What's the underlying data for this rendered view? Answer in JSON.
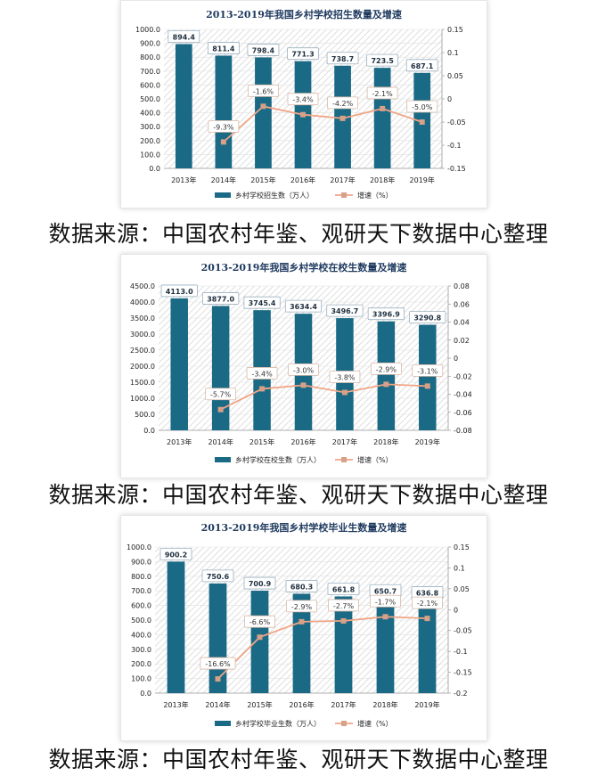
{
  "colors": {
    "bar": "#1a6985",
    "line": "#f0a585",
    "marker": "#d6a188",
    "grid": "#e2e2e2",
    "hatch": "#dfdfdf"
  },
  "chart_data": [
    {
      "type": "bar",
      "title": "2013-2019年我国乡村学校招生数量及增速",
      "categories": [
        "2013年",
        "2014年",
        "2015年",
        "2016年",
        "2017年",
        "2018年",
        "2019年"
      ],
      "bar_labels": [
        "894.4",
        "811.4",
        "798.4",
        "771.3",
        "738.7",
        "723.5",
        "687.1"
      ],
      "rate_labels": [
        "-9.3%",
        "-1.6%",
        "-3.4%",
        "-4.2%",
        "-2.1%",
        "-5.0%"
      ],
      "series": [
        {
          "name": "乡村学校招生数（万人）",
          "type": "bar",
          "axis": "left",
          "values": [
            894.4,
            811.4,
            798.4,
            771.3,
            738.7,
            723.5,
            687.1
          ]
        },
        {
          "name": "增速（%）",
          "type": "line",
          "axis": "right",
          "values": [
            null,
            -0.093,
            -0.016,
            -0.034,
            -0.042,
            -0.021,
            -0.05
          ]
        }
      ],
      "ylim": [
        0,
        1000
      ],
      "yticks": [
        "0.0",
        "100.0",
        "200.0",
        "300.0",
        "400.0",
        "500.0",
        "600.0",
        "700.0",
        "800.0",
        "900.0",
        "1000.0"
      ],
      "y2lim": [
        -0.15,
        0.15
      ],
      "y2ticks": [
        "-0.15",
        "-0.1",
        "-0.05",
        "0",
        "0.05",
        "0.1",
        "0.15"
      ],
      "legend": "bottom"
    },
    {
      "type": "bar",
      "title": "2013-2019年我国乡村学校在校生数量及增速",
      "categories": [
        "2013年",
        "2014年",
        "2015年",
        "2016年",
        "2017年",
        "2018年",
        "2019年"
      ],
      "bar_labels": [
        "4113.0",
        "3877.0",
        "3745.4",
        "3634.4",
        "3496.7",
        "3396.9",
        "3290.8"
      ],
      "rate_labels": [
        "-5.7%",
        "-3.4%",
        "-3.0%",
        "-3.8%",
        "-2.9%",
        "-3.1%"
      ],
      "series": [
        {
          "name": "乡村学校在校生数（万人）",
          "type": "bar",
          "axis": "left",
          "values": [
            4113.0,
            3877.0,
            3745.4,
            3634.4,
            3496.7,
            3396.9,
            3290.8
          ]
        },
        {
          "name": "增速（%）",
          "type": "line",
          "axis": "right",
          "values": [
            null,
            -0.057,
            -0.034,
            -0.03,
            -0.038,
            -0.029,
            -0.031
          ]
        }
      ],
      "ylim": [
        0,
        4500
      ],
      "yticks": [
        "0.0",
        "500.0",
        "1000.0",
        "1500.0",
        "2000.0",
        "2500.0",
        "3000.0",
        "3500.0",
        "4000.0",
        "4500.0"
      ],
      "y2lim": [
        -0.08,
        0.08
      ],
      "y2ticks": [
        "-0.08",
        "-0.06",
        "-0.04",
        "-0.02",
        "0",
        "0.02",
        "0.04",
        "0.06",
        "0.08"
      ],
      "legend": "bottom"
    },
    {
      "type": "bar",
      "title": "2013-2019年我国乡村学校毕业生数量及增速",
      "categories": [
        "2013年",
        "2014年",
        "2015年",
        "2016年",
        "2017年",
        "2018年",
        "2019年"
      ],
      "bar_labels": [
        "900.2",
        "750.6",
        "700.9",
        "680.3",
        "661.8",
        "650.7",
        "636.8"
      ],
      "rate_labels": [
        "-16.6%",
        "-6.6%",
        "-2.9%",
        "-2.7%",
        "-1.7%",
        "-2.1%"
      ],
      "series": [
        {
          "name": "乡村学校毕业生数（万人）",
          "type": "bar",
          "axis": "left",
          "values": [
            900.2,
            750.6,
            700.9,
            680.3,
            661.8,
            650.7,
            636.8
          ]
        },
        {
          "name": "增速（%）",
          "type": "line",
          "axis": "right",
          "values": [
            null,
            -0.166,
            -0.066,
            -0.029,
            -0.027,
            -0.017,
            -0.021
          ]
        }
      ],
      "ylim": [
        0,
        1000
      ],
      "yticks": [
        "0.0",
        "100.0",
        "200.0",
        "300.0",
        "400.0",
        "500.0",
        "600.0",
        "700.0",
        "800.0",
        "900.0",
        "1000.0"
      ],
      "y2lim": [
        -0.2,
        0.15
      ],
      "y2ticks": [
        "-0.2",
        "-0.15",
        "-0.1",
        "-0.05",
        "0",
        "0.05",
        "0.1",
        "0.15"
      ],
      "legend": "bottom"
    }
  ],
  "captions": [
    "数据来源：中国农村年鉴、观研天下数据中心整理",
    "数据来源：中国农村年鉴、观研天下数据中心整理",
    "数据来源：中国农村年鉴、观研天下数据中心整理"
  ]
}
